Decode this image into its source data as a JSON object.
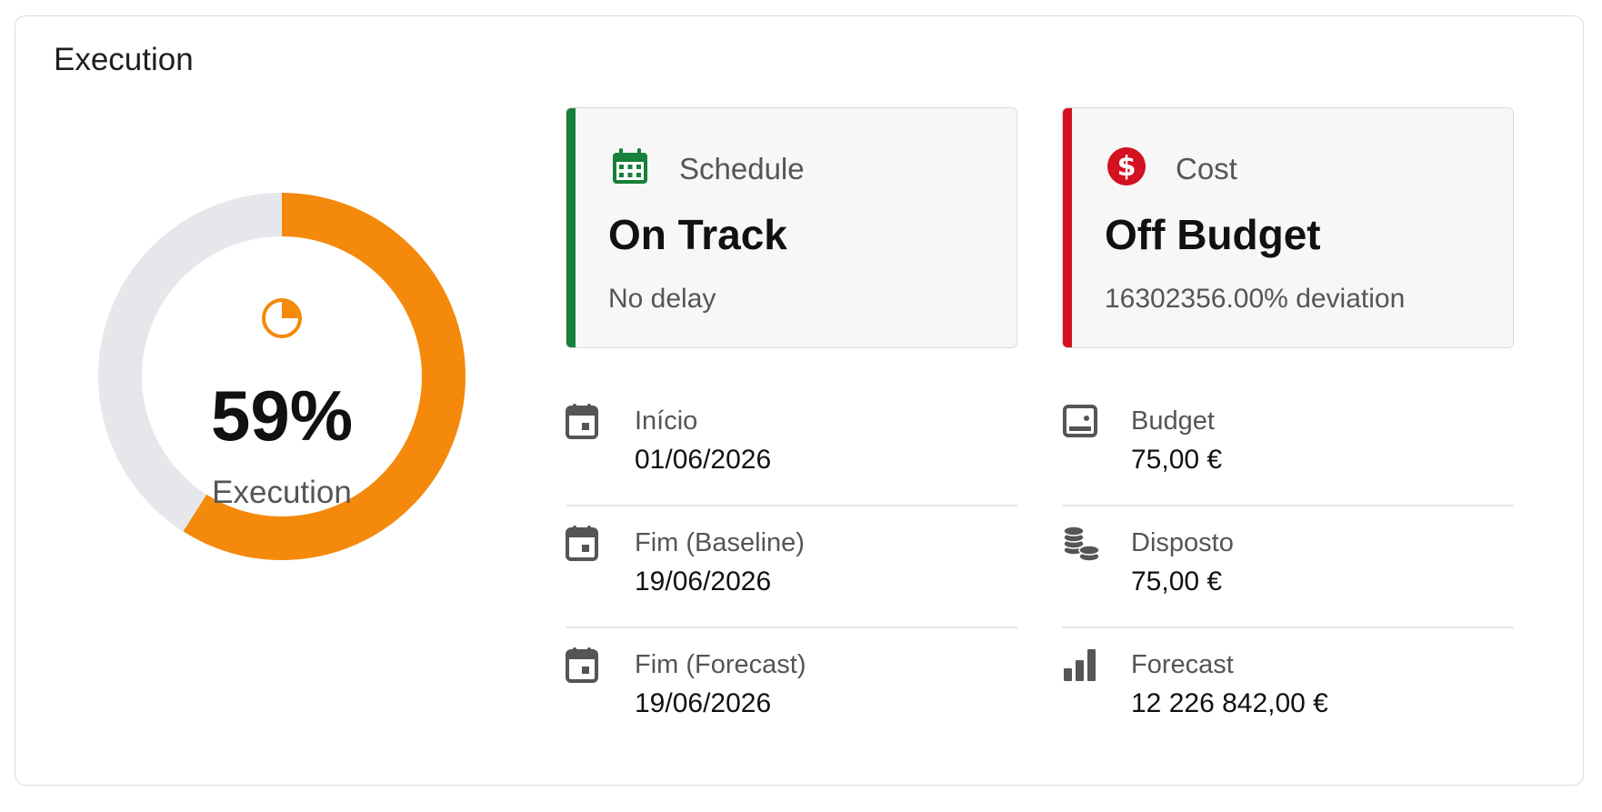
{
  "card": {
    "title": "Execution"
  },
  "execution": {
    "percent_text": "59%",
    "label": "Execution",
    "fraction": 0.59,
    "icon": "pie-chart-icon",
    "color": "#f5890b",
    "track_color": "#e6e7eb"
  },
  "schedule": {
    "label": "Schedule",
    "status": "On Track",
    "detail": "No delay",
    "accent": "#17803a",
    "icon": "calendar-grid-icon",
    "rows": [
      {
        "label": "Início",
        "value": "01/06/2026",
        "icon": "calendar-icon"
      },
      {
        "label": "Fim (Baseline)",
        "value": "19/06/2026",
        "icon": "calendar-icon"
      },
      {
        "label": "Fim (Forecast)",
        "value": "19/06/2026",
        "icon": "calendar-icon"
      }
    ]
  },
  "cost": {
    "label": "Cost",
    "status": "Off Budget",
    "detail": "16302356.00% deviation",
    "accent": "#d31120",
    "icon": "dollar-circle-icon",
    "rows": [
      {
        "label": "Budget",
        "value": "75,00 €",
        "icon": "wallet-icon"
      },
      {
        "label": "Disposto",
        "value": "75,00 €",
        "icon": "coins-icon"
      },
      {
        "label": "Forecast",
        "value": "12 226 842,00 €",
        "icon": "bar-chart-icon"
      }
    ]
  }
}
